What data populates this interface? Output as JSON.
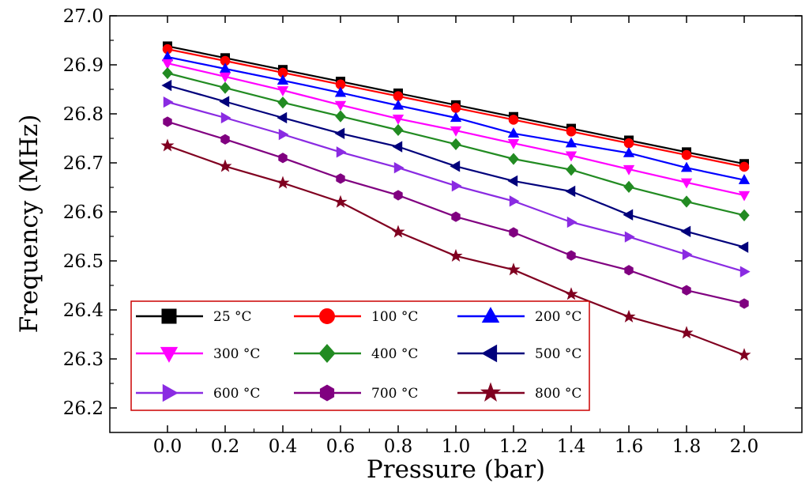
{
  "chart_data": {
    "type": "line",
    "title": "",
    "xlabel": "Pressure (bar)",
    "ylabel": "Frequency (MHz)",
    "xlim": [
      -0.2,
      2.2
    ],
    "ylim": [
      26.15,
      27.0
    ],
    "x": [
      0.0,
      0.2,
      0.4,
      0.6,
      0.8,
      1.0,
      1.2,
      1.4,
      1.6,
      1.8,
      2.0
    ],
    "x_tick_labels": [
      "0.0",
      "0.2",
      "0.4",
      "0.6",
      "0.8",
      "1.0",
      "1.2",
      "1.4",
      "1.6",
      "1.8",
      "2.0"
    ],
    "y_ticks": [
      26.2,
      26.3,
      26.4,
      26.5,
      26.6,
      26.7,
      26.8,
      26.9,
      27.0
    ],
    "y_tick_labels": [
      "26.2",
      "26.3",
      "26.4",
      "26.5",
      "26.6",
      "26.7",
      "26.8",
      "26.9",
      "27.0"
    ],
    "grid": false,
    "legend_position": "bottom-left",
    "series": [
      {
        "name": "25 °C",
        "color": "#000000",
        "marker": "square",
        "values": [
          26.938,
          26.914,
          26.89,
          26.866,
          26.842,
          26.818,
          26.794,
          26.77,
          26.746,
          26.722,
          26.698
        ]
      },
      {
        "name": "100 °C",
        "color": "#ff0000",
        "marker": "circle",
        "values": [
          26.932,
          26.908,
          26.884,
          26.86,
          26.836,
          26.812,
          26.788,
          26.764,
          26.74,
          26.716,
          26.692
        ]
      },
      {
        "name": "200 °C",
        "color": "#0000ff",
        "marker": "triangle-up",
        "values": [
          26.916,
          26.892,
          26.868,
          26.843,
          26.817,
          26.792,
          26.76,
          26.74,
          26.72,
          26.69,
          26.665
        ]
      },
      {
        "name": "300 °C",
        "color": "#ff00ff",
        "marker": "triangle-down",
        "values": [
          26.903,
          26.876,
          26.848,
          26.818,
          26.79,
          26.766,
          26.74,
          26.715,
          26.687,
          26.66,
          26.634
        ]
      },
      {
        "name": "400 °C",
        "color": "#228b22",
        "marker": "diamond",
        "values": [
          26.883,
          26.853,
          26.823,
          26.795,
          26.767,
          26.738,
          26.708,
          26.686,
          26.651,
          26.621,
          26.593
        ]
      },
      {
        "name": "500 °C",
        "color": "#00007b",
        "marker": "triangle-left",
        "values": [
          26.858,
          26.825,
          26.792,
          26.76,
          26.733,
          26.693,
          26.663,
          26.642,
          26.594,
          26.56,
          26.528
        ]
      },
      {
        "name": "600 °C",
        "color": "#8a2be2",
        "marker": "triangle-right",
        "values": [
          26.824,
          26.792,
          26.758,
          26.722,
          26.69,
          26.653,
          26.622,
          26.579,
          26.549,
          26.513,
          26.478
        ]
      },
      {
        "name": "700 °C",
        "color": "#800080",
        "marker": "hexagon",
        "values": [
          26.784,
          26.748,
          26.71,
          26.668,
          26.634,
          26.59,
          26.558,
          26.511,
          26.481,
          26.44,
          26.413
        ]
      },
      {
        "name": "800 °C",
        "color": "#800020",
        "marker": "star",
        "values": [
          26.735,
          26.693,
          26.659,
          26.62,
          26.559,
          26.51,
          26.482,
          26.432,
          26.386,
          26.353,
          26.308
        ]
      }
    ]
  }
}
